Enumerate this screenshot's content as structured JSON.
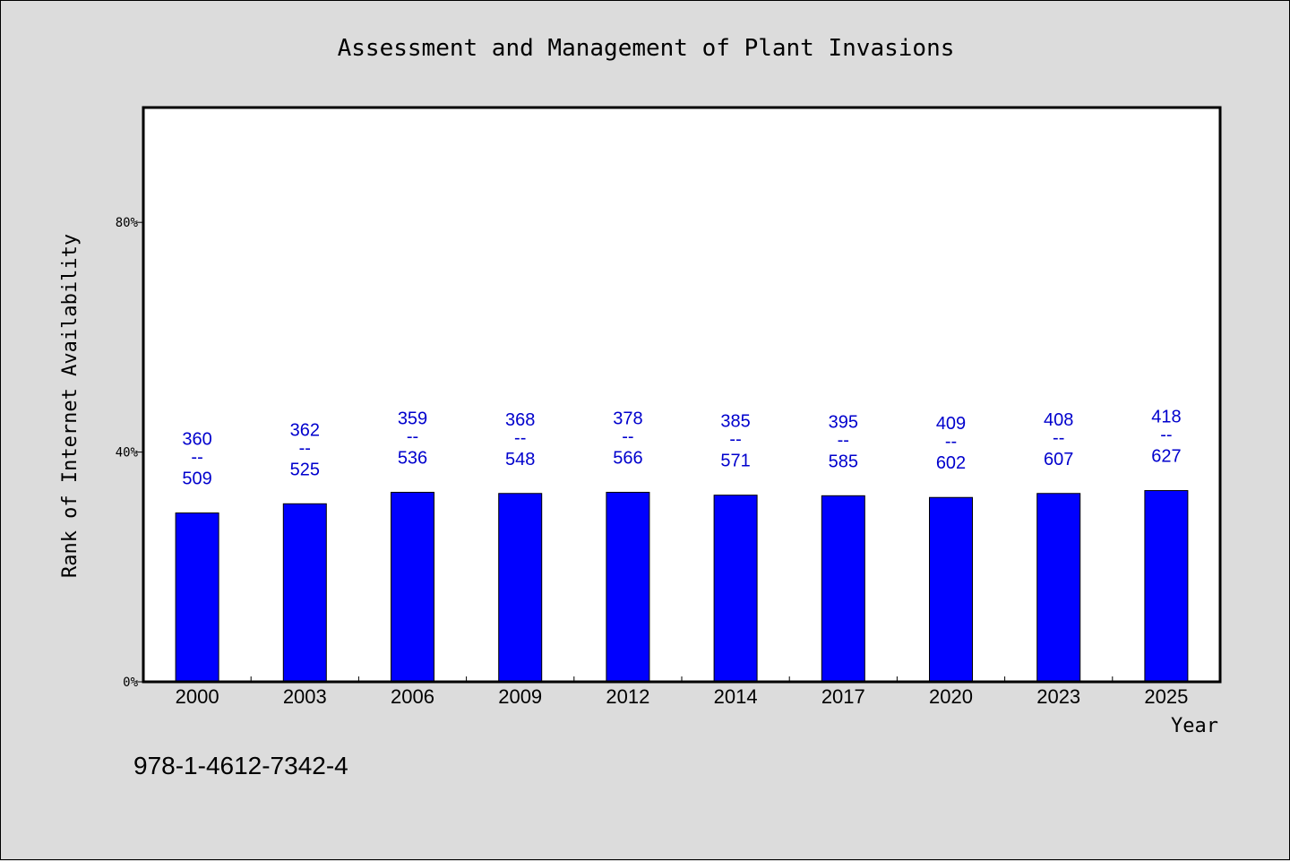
{
  "chart_data": {
    "type": "bar",
    "title": "Assessment and Management of Plant Invasions",
    "xlabel": "Year",
    "ylabel": "Rank of Internet Availability",
    "categories": [
      "2000",
      "2003",
      "2006",
      "2009",
      "2012",
      "2014",
      "2017",
      "2020",
      "2023",
      "2025"
    ],
    "values": [
      29.4,
      31.0,
      33.0,
      32.8,
      33.0,
      32.5,
      32.4,
      32.1,
      32.8,
      33.3
    ],
    "rank": [
      "360",
      "362",
      "359",
      "368",
      "378",
      "385",
      "395",
      "409",
      "408",
      "418"
    ],
    "total": [
      "509",
      "525",
      "536",
      "548",
      "566",
      "571",
      "585",
      "602",
      "607",
      "627"
    ],
    "separator": "--",
    "ylim": [
      0,
      100
    ],
    "yticks": [
      0,
      40,
      80
    ],
    "ytick_labels": [
      "0%",
      "40%",
      "80%"
    ],
    "bar_color": "#0000ff",
    "label_color": "#0000cd",
    "grid": false,
    "legend": "none"
  },
  "footer": {
    "isbn": "978-1-4612-7342-4"
  }
}
